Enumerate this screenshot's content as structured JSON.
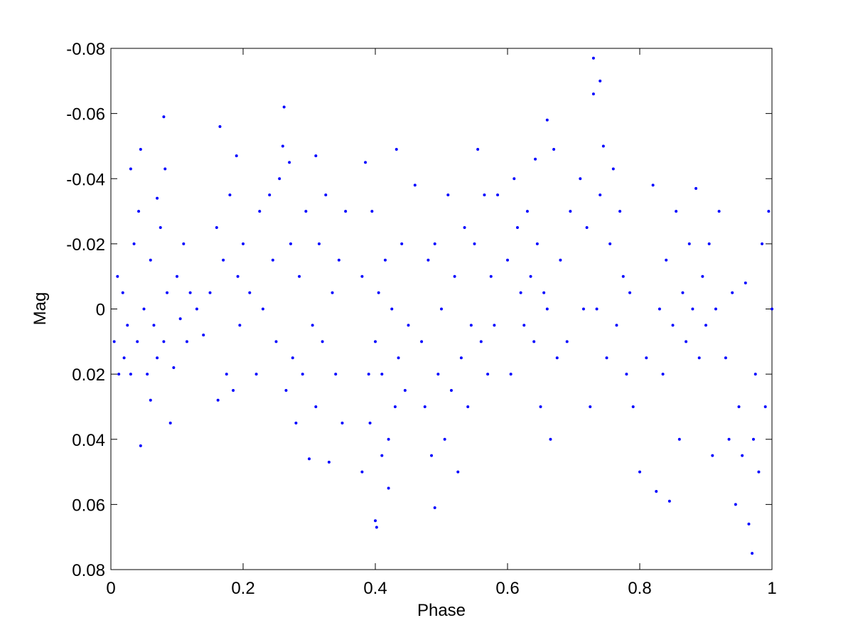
{
  "chart_data": {
    "type": "scatter",
    "xlabel": "Phase",
    "ylabel": "Mag",
    "xlim": [
      0,
      1
    ],
    "xticks": [
      0,
      0.2,
      0.4,
      0.6,
      0.8,
      1
    ],
    "ylim": [
      -0.08,
      0.08
    ],
    "yticks": [
      -0.08,
      -0.06,
      -0.04,
      -0.02,
      0,
      0.02,
      0.04,
      0.06,
      0.08
    ],
    "y_reversed": true,
    "color": "#0000ff",
    "x": [
      0.005,
      0.01,
      0.012,
      0.018,
      0.02,
      0.025,
      0.03,
      0.03,
      0.035,
      0.04,
      0.042,
      0.045,
      0.045,
      0.05,
      0.055,
      0.06,
      0.06,
      0.065,
      0.07,
      0.07,
      0.075,
      0.08,
      0.08,
      0.082,
      0.085,
      0.09,
      0.095,
      0.1,
      0.105,
      0.11,
      0.115,
      0.12,
      0.13,
      0.14,
      0.15,
      0.16,
      0.162,
      0.165,
      0.17,
      0.175,
      0.18,
      0.185,
      0.19,
      0.192,
      0.195,
      0.2,
      0.21,
      0.22,
      0.225,
      0.23,
      0.24,
      0.245,
      0.25,
      0.255,
      0.26,
      0.262,
      0.265,
      0.27,
      0.272,
      0.275,
      0.28,
      0.285,
      0.29,
      0.295,
      0.3,
      0.305,
      0.31,
      0.31,
      0.315,
      0.32,
      0.325,
      0.33,
      0.335,
      0.34,
      0.345,
      0.35,
      0.355,
      0.38,
      0.38,
      0.385,
      0.39,
      0.392,
      0.395,
      0.4,
      0.4,
      0.402,
      0.405,
      0.41,
      0.41,
      0.415,
      0.42,
      0.42,
      0.425,
      0.43,
      0.432,
      0.435,
      0.44,
      0.445,
      0.45,
      0.46,
      0.47,
      0.475,
      0.48,
      0.485,
      0.49,
      0.49,
      0.495,
      0.5,
      0.505,
      0.51,
      0.515,
      0.52,
      0.525,
      0.53,
      0.535,
      0.54,
      0.545,
      0.55,
      0.555,
      0.56,
      0.565,
      0.57,
      0.575,
      0.58,
      0.585,
      0.6,
      0.605,
      0.61,
      0.615,
      0.62,
      0.625,
      0.63,
      0.635,
      0.64,
      0.642,
      0.645,
      0.65,
      0.655,
      0.66,
      0.66,
      0.665,
      0.67,
      0.675,
      0.68,
      0.69,
      0.695,
      0.71,
      0.715,
      0.72,
      0.725,
      0.73,
      0.73,
      0.735,
      0.74,
      0.74,
      0.745,
      0.75,
      0.755,
      0.76,
      0.765,
      0.77,
      0.775,
      0.78,
      0.785,
      0.79,
      0.8,
      0.81,
      0.82,
      0.825,
      0.83,
      0.835,
      0.84,
      0.845,
      0.85,
      0.855,
      0.86,
      0.865,
      0.87,
      0.875,
      0.88,
      0.885,
      0.89,
      0.895,
      0.9,
      0.905,
      0.91,
      0.915,
      0.92,
      0.93,
      0.935,
      0.94,
      0.945,
      0.95,
      0.955,
      0.96,
      0.965,
      0.97,
      0.972,
      0.975,
      0.98,
      0.985,
      0.99,
      0.995,
      1.0
    ],
    "values": [
      0.01,
      -0.01,
      0.02,
      -0.005,
      0.015,
      0.005,
      -0.043,
      0.02,
      -0.02,
      0.01,
      -0.03,
      0.042,
      -0.049,
      0.0,
      0.02,
      -0.015,
      0.028,
      0.005,
      -0.034,
      0.015,
      -0.025,
      -0.059,
      0.01,
      -0.043,
      -0.005,
      0.035,
      0.018,
      -0.01,
      0.003,
      -0.02,
      0.01,
      -0.005,
      0.0,
      0.008,
      -0.005,
      -0.025,
      0.028,
      -0.056,
      -0.015,
      0.02,
      -0.035,
      0.025,
      -0.047,
      -0.01,
      0.005,
      -0.02,
      -0.005,
      0.02,
      -0.03,
      0.0,
      -0.035,
      -0.015,
      0.01,
      -0.04,
      -0.05,
      -0.062,
      0.025,
      -0.045,
      -0.02,
      0.015,
      0.035,
      -0.01,
      0.02,
      -0.03,
      0.046,
      0.005,
      -0.047,
      0.03,
      -0.02,
      0.01,
      -0.035,
      0.047,
      -0.005,
      0.02,
      -0.015,
      0.035,
      -0.03,
      0.05,
      -0.01,
      -0.045,
      0.02,
      0.035,
      -0.03,
      0.065,
      0.01,
      0.067,
      -0.005,
      0.045,
      0.02,
      -0.015,
      0.04,
      0.055,
      0.0,
      0.03,
      -0.049,
      0.015,
      -0.02,
      0.025,
      0.005,
      -0.038,
      0.01,
      0.03,
      -0.015,
      0.045,
      0.061,
      -0.02,
      0.02,
      0.0,
      0.04,
      -0.035,
      0.025,
      -0.01,
      0.05,
      0.015,
      -0.025,
      0.03,
      0.005,
      -0.02,
      -0.049,
      0.01,
      -0.035,
      0.02,
      -0.01,
      0.005,
      -0.035,
      -0.015,
      0.02,
      -0.04,
      -0.025,
      -0.005,
      0.005,
      -0.03,
      -0.01,
      0.01,
      -0.046,
      -0.02,
      0.03,
      -0.005,
      0.0,
      -0.058,
      0.04,
      -0.049,
      0.015,
      -0.015,
      0.01,
      -0.03,
      -0.04,
      0.0,
      -0.025,
      0.03,
      -0.077,
      -0.066,
      0.0,
      -0.07,
      -0.035,
      -0.05,
      0.015,
      -0.02,
      -0.043,
      0.005,
      -0.03,
      -0.01,
      0.02,
      -0.005,
      0.03,
      0.05,
      0.015,
      -0.038,
      0.056,
      0.0,
      0.02,
      -0.015,
      0.059,
      0.005,
      -0.03,
      0.04,
      -0.005,
      0.01,
      -0.02,
      0.0,
      -0.037,
      0.015,
      -0.01,
      0.005,
      -0.02,
      0.045,
      0.0,
      -0.03,
      0.015,
      0.04,
      -0.005,
      0.06,
      0.03,
      0.045,
      -0.008,
      0.066,
      0.075,
      0.04,
      0.02,
      0.05,
      -0.02,
      0.03,
      -0.03,
      0.0
    ]
  }
}
